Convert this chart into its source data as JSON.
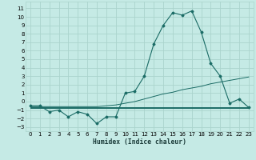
{
  "xlabel": "Humidex (Indice chaleur)",
  "xlim": [
    -0.5,
    23.5
  ],
  "ylim": [
    -3.5,
    11.8
  ],
  "xticks": [
    0,
    1,
    2,
    3,
    4,
    5,
    6,
    7,
    8,
    9,
    10,
    11,
    12,
    13,
    14,
    15,
    16,
    17,
    18,
    19,
    20,
    21,
    22,
    23
  ],
  "yticks": [
    -3,
    -2,
    -1,
    0,
    1,
    2,
    3,
    4,
    5,
    6,
    7,
    8,
    9,
    10,
    11
  ],
  "bg_color": "#c5eae5",
  "grid_color": "#aad4cc",
  "line_color": "#1a6b65",
  "main_series": [
    -0.5,
    -0.5,
    -1.2,
    -1.0,
    -1.8,
    -1.2,
    -1.5,
    -2.6,
    -1.8,
    -1.8,
    1.0,
    1.2,
    3.0,
    6.8,
    9.0,
    10.5,
    10.2,
    10.7,
    8.2,
    4.5,
    3.0,
    -0.2,
    0.3,
    -0.7
  ],
  "upper_mean_series": [
    -0.6,
    -0.6,
    -0.6,
    -0.6,
    -0.6,
    -0.6,
    -0.6,
    -0.6,
    -0.5,
    -0.4,
    -0.2,
    0.0,
    0.3,
    0.6,
    0.9,
    1.1,
    1.4,
    1.6,
    1.8,
    2.1,
    2.3,
    2.5,
    2.7,
    2.9
  ],
  "lower_flat_series": [
    -0.8,
    -0.8,
    -0.8,
    -0.8,
    -0.8,
    -0.8,
    -0.8,
    -0.8,
    -0.8,
    -0.8,
    -0.8,
    -0.8,
    -0.8,
    -0.8,
    -0.8,
    -0.8,
    -0.8,
    -0.8,
    -0.8,
    -0.8,
    -0.8,
    -0.8,
    -0.8,
    -0.8
  ],
  "mid_flat_series": [
    -0.65,
    -0.65,
    -0.65,
    -0.65,
    -0.65,
    -0.65,
    -0.65,
    -0.65,
    -0.65,
    -0.65,
    -0.65,
    -0.65,
    -0.65,
    -0.65,
    -0.65,
    -0.65,
    -0.65,
    -0.65,
    -0.65,
    -0.65,
    -0.65,
    -0.65,
    -0.65,
    -0.65
  ]
}
